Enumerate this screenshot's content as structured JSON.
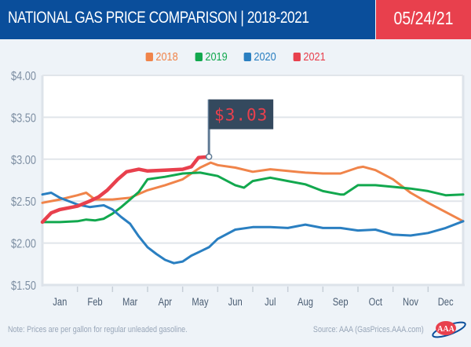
{
  "header": {
    "title": "NATIONAL GAS PRICE COMPARISON | 2018-2021",
    "date": "05/24/21"
  },
  "colors": {
    "title_bg": "#0a4e9b",
    "date_bg": "#e8404d",
    "page_bg": "#eef3f8",
    "flag_bg": "#34495e",
    "flag_text": "#e8404d"
  },
  "footer": {
    "note": "Note: Prices are per gallon for regular unleaded gasoline.",
    "source": "Source: AAA (GasPrices.AAA.com)",
    "logo": "AAA"
  },
  "chart_data": {
    "type": "line",
    "title": "NATIONAL GAS PRICE COMPARISON | 2018-2021",
    "xlabel": "",
    "ylabel": "",
    "categories": [
      "Jan",
      "Feb",
      "Mar",
      "Apr",
      "May",
      "Jun",
      "Jul",
      "Aug",
      "Sep",
      "Oct",
      "Nov",
      "Dec"
    ],
    "x_unit": "month (0 = Jan 1, 12 = Dec 31)",
    "ylim": [
      1.5,
      4.0
    ],
    "yticks": [
      1.5,
      2.0,
      2.5,
      3.0,
      3.5,
      4.0
    ],
    "ytick_labels": [
      "$1.50",
      "$2.00",
      "$2.50",
      "$3.00",
      "$3.50",
      "$4.00"
    ],
    "grid": true,
    "legend_position": "top-center",
    "annotation": {
      "label": "$3.03",
      "series": "2021",
      "x": 4.75,
      "y": 3.03
    },
    "series": [
      {
        "name": "2018",
        "color": "#f0844a",
        "x": [
          0,
          0.5,
          1,
          1.25,
          1.5,
          2,
          2.5,
          3,
          3.5,
          4,
          4.5,
          4.8,
          5,
          5.5,
          6,
          6.5,
          7,
          7.5,
          8,
          8.5,
          9,
          9.15,
          9.5,
          10,
          10.5,
          11,
          11.5,
          12
        ],
        "values": [
          2.48,
          2.52,
          2.57,
          2.6,
          2.52,
          2.52,
          2.54,
          2.63,
          2.69,
          2.76,
          2.9,
          2.96,
          2.93,
          2.9,
          2.85,
          2.88,
          2.86,
          2.84,
          2.83,
          2.83,
          2.9,
          2.91,
          2.87,
          2.76,
          2.6,
          2.48,
          2.37,
          2.26
        ]
      },
      {
        "name": "2019",
        "color": "#12a84e",
        "x": [
          0,
          0.5,
          1,
          1.25,
          1.5,
          1.75,
          2,
          2.25,
          2.5,
          2.75,
          3,
          3.5,
          4,
          4.5,
          5,
          5.5,
          5.75,
          6,
          6.5,
          7,
          7.5,
          8,
          8.5,
          8.6,
          9,
          9.5,
          10,
          10.5,
          11,
          11.5,
          12
        ],
        "values": [
          2.25,
          2.25,
          2.26,
          2.28,
          2.27,
          2.29,
          2.35,
          2.43,
          2.52,
          2.61,
          2.76,
          2.79,
          2.83,
          2.84,
          2.8,
          2.69,
          2.66,
          2.74,
          2.78,
          2.74,
          2.7,
          2.62,
          2.58,
          2.58,
          2.69,
          2.69,
          2.67,
          2.65,
          2.62,
          2.57,
          2.58
        ]
      },
      {
        "name": "2020",
        "color": "#2a7fc1",
        "x": [
          0,
          0.25,
          0.5,
          1,
          1.35,
          1.75,
          2,
          2.25,
          2.5,
          2.75,
          3,
          3.25,
          3.5,
          3.75,
          4,
          4.25,
          4.5,
          4.75,
          5,
          5.5,
          6,
          6.5,
          7,
          7.5,
          8,
          8.5,
          9,
          9.5,
          10,
          10.5,
          11,
          11.5,
          12
        ],
        "values": [
          2.58,
          2.6,
          2.54,
          2.46,
          2.43,
          2.45,
          2.4,
          2.31,
          2.23,
          2.08,
          1.95,
          1.87,
          1.8,
          1.76,
          1.78,
          1.85,
          1.9,
          1.95,
          2.05,
          2.16,
          2.19,
          2.19,
          2.18,
          2.22,
          2.18,
          2.18,
          2.15,
          2.16,
          2.1,
          2.09,
          2.12,
          2.18,
          2.26
        ]
      },
      {
        "name": "2021",
        "color": "#e8404d",
        "x": [
          0,
          0.25,
          0.5,
          1,
          1.35,
          1.6,
          1.85,
          2.15,
          2.4,
          2.75,
          3,
          3.5,
          4,
          4.25,
          4.45,
          4.75
        ],
        "values": [
          2.25,
          2.36,
          2.4,
          2.44,
          2.5,
          2.55,
          2.63,
          2.76,
          2.85,
          2.88,
          2.86,
          2.87,
          2.88,
          2.91,
          3.02,
          3.03
        ]
      }
    ]
  }
}
